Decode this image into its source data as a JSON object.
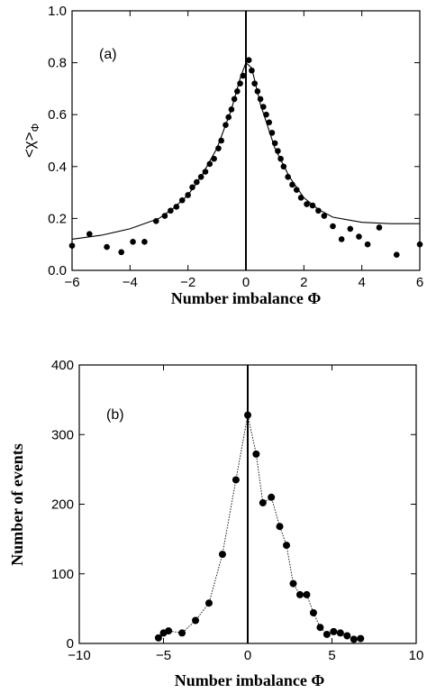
{
  "chart_data": [
    {
      "type": "scatter",
      "panel_label": "(a)",
      "xlabel": "Number imbalance Φ",
      "ylabel": "<χ>",
      "ylabel_subscript": "Φ",
      "xlim": [
        -6,
        6
      ],
      "ylim": [
        0.0,
        1.0
      ],
      "x_ticks": [
        -6,
        -4,
        -2,
        0,
        2,
        4,
        6
      ],
      "x_tick_labels": [
        "−6",
        "−4",
        "−2",
        "0",
        "2",
        "4",
        "6"
      ],
      "y_ticks": [
        0.0,
        0.2,
        0.4,
        0.6,
        0.8,
        1.0
      ],
      "y_tick_labels": [
        "0.0",
        "0.2",
        "0.4",
        "0.6",
        "0.8",
        "1.0"
      ],
      "grid": false,
      "vertical_line_x": 0,
      "series": [
        {
          "style": "markers",
          "x": [
            -6.0,
            -5.4,
            -4.8,
            -4.3,
            -3.9,
            -3.5,
            -3.1,
            -2.8,
            -2.6,
            -2.4,
            -2.2,
            -2.0,
            -1.85,
            -1.7,
            -1.55,
            -1.4,
            -1.25,
            -1.1,
            -0.95,
            -0.85,
            -0.7,
            -0.6,
            -0.5,
            -0.4,
            -0.3,
            -0.2,
            -0.1,
            0.1,
            0.2,
            0.3,
            0.4,
            0.5,
            0.6,
            0.7,
            0.8,
            0.9,
            1.0,
            1.1,
            1.2,
            1.3,
            1.45,
            1.6,
            1.75,
            1.9,
            2.1,
            2.3,
            2.5,
            2.7,
            3.0,
            3.3,
            3.6,
            3.9,
            4.2,
            4.6,
            5.2,
            6.0
          ],
          "y": [
            0.095,
            0.14,
            0.09,
            0.07,
            0.11,
            0.11,
            0.19,
            0.21,
            0.23,
            0.245,
            0.27,
            0.29,
            0.32,
            0.34,
            0.36,
            0.38,
            0.41,
            0.43,
            0.47,
            0.5,
            0.56,
            0.59,
            0.62,
            0.66,
            0.69,
            0.72,
            0.75,
            0.81,
            0.77,
            0.72,
            0.69,
            0.66,
            0.63,
            0.6,
            0.57,
            0.53,
            0.49,
            0.46,
            0.43,
            0.4,
            0.36,
            0.33,
            0.31,
            0.28,
            0.255,
            0.25,
            0.23,
            0.21,
            0.17,
            0.12,
            0.16,
            0.13,
            0.1,
            0.165,
            0.06,
            0.1
          ]
        },
        {
          "style": "solid-line",
          "x": [
            -6,
            -5,
            -4,
            -3,
            -2.5,
            -2,
            -1.5,
            -1,
            -0.5,
            -0.2,
            0,
            0.2,
            0.5,
            1,
            1.5,
            2,
            2.5,
            3,
            4,
            5,
            6
          ],
          "y": [
            0.12,
            0.135,
            0.16,
            0.2,
            0.24,
            0.29,
            0.37,
            0.47,
            0.62,
            0.74,
            0.8,
            0.78,
            0.64,
            0.47,
            0.36,
            0.28,
            0.235,
            0.205,
            0.185,
            0.18,
            0.18
          ]
        }
      ]
    },
    {
      "type": "line",
      "panel_label": "(b)",
      "xlabel": "Number imbalance Φ",
      "ylabel": "Number of events",
      "xlim": [
        -10,
        10
      ],
      "ylim": [
        0,
        400
      ],
      "x_ticks": [
        -10,
        -5,
        0,
        5,
        10
      ],
      "x_tick_labels": [
        "−10",
        "−5",
        "0",
        "5",
        "10"
      ],
      "y_ticks": [
        0,
        100,
        200,
        300,
        400
      ],
      "y_tick_labels": [
        "0",
        "100",
        "200",
        "300",
        "400"
      ],
      "grid": false,
      "vertical_line_x": 0,
      "series": [
        {
          "style": "dotted-line-with-markers",
          "x": [
            -5.3,
            -5.0,
            -4.7,
            -3.9,
            -3.1,
            -2.3,
            -1.5,
            -0.7,
            0.0,
            0.5,
            0.9,
            1.4,
            1.9,
            2.3,
            2.7,
            3.1,
            3.5,
            3.9,
            4.3,
            4.7,
            5.1,
            5.5,
            5.9,
            6.3,
            6.7
          ],
          "y": [
            8,
            15,
            18,
            15,
            33,
            58,
            128,
            235,
            328,
            272,
            202,
            210,
            168,
            141,
            86,
            70,
            70,
            44,
            23,
            13,
            17,
            15,
            11,
            6,
            7
          ]
        }
      ]
    }
  ]
}
